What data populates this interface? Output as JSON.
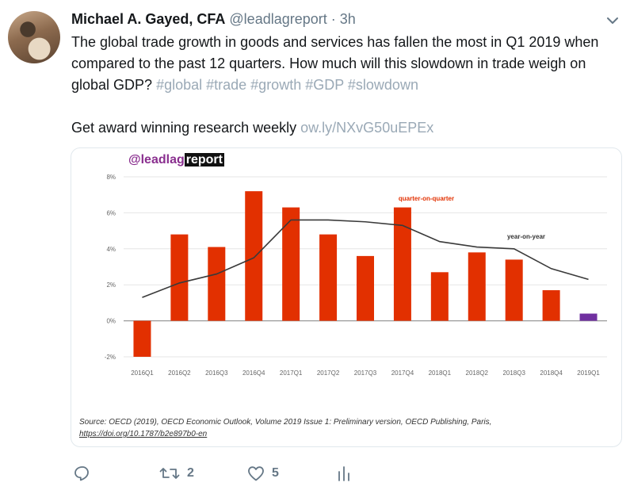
{
  "tweet": {
    "author_name": "Michael A. Gayed, CFA",
    "handle": "@leadlagreport",
    "separator": "·",
    "time": "3h",
    "text_part1": "The global trade growth in goods and services has fallen the most in Q1 2019 when compared to the past 12 quarters. How much will this slowdown in trade weigh on global GDP?",
    "hashtags": "#global #trade #growth #GDP #slowdown",
    "cta_text": "Get award winning research weekly",
    "cta_link": "ow.ly/NXvG50uEPEx"
  },
  "card": {
    "brand_part1": "@leadlag",
    "brand_part2": "report",
    "source_text": "Source: OECD (2019), OECD Economic Outlook, Volume 2019 Issue 1: Preliminary version, OECD Publishing, Paris,",
    "source_link": "https://doi.org/10.1787/b2e897b0-en"
  },
  "actions": {
    "reply_icon": "reply-icon",
    "retweet_icon": "retweet-icon",
    "retweet_count": "2",
    "like_icon": "heart-icon",
    "like_count": "5",
    "analytics_icon": "bar-chart-icon"
  },
  "colors": {
    "bar": "#e23000",
    "bar_last": "#7030a0",
    "line": "#3a3a3a",
    "label_red": "#e23000"
  },
  "chart_data": {
    "type": "bar",
    "categories": [
      "2016Q1",
      "2016Q2",
      "2016Q3",
      "2016Q4",
      "2017Q1",
      "2017Q2",
      "2017Q3",
      "2017Q4",
      "2018Q1",
      "2018Q2",
      "2018Q3",
      "2018Q4",
      "2019Q1"
    ],
    "series": [
      {
        "name": "quarter-on-quarter",
        "kind": "bar",
        "values": [
          -2.0,
          4.8,
          4.1,
          7.2,
          6.3,
          4.8,
          3.6,
          6.3,
          2.7,
          3.8,
          3.4,
          1.7,
          0.4
        ]
      },
      {
        "name": "year-on-year",
        "kind": "line",
        "values": [
          1.3,
          2.1,
          2.6,
          3.5,
          5.6,
          5.6,
          5.5,
          5.3,
          4.4,
          4.1,
          4.0,
          2.9,
          2.3
        ]
      }
    ],
    "ytick_labels": [
      "-2%",
      "0%",
      "2%",
      "4%",
      "6%",
      "8%"
    ],
    "yticks": [
      -2,
      0,
      2,
      4,
      6,
      8
    ],
    "ylim": [
      -2,
      8
    ],
    "grid": true
  }
}
